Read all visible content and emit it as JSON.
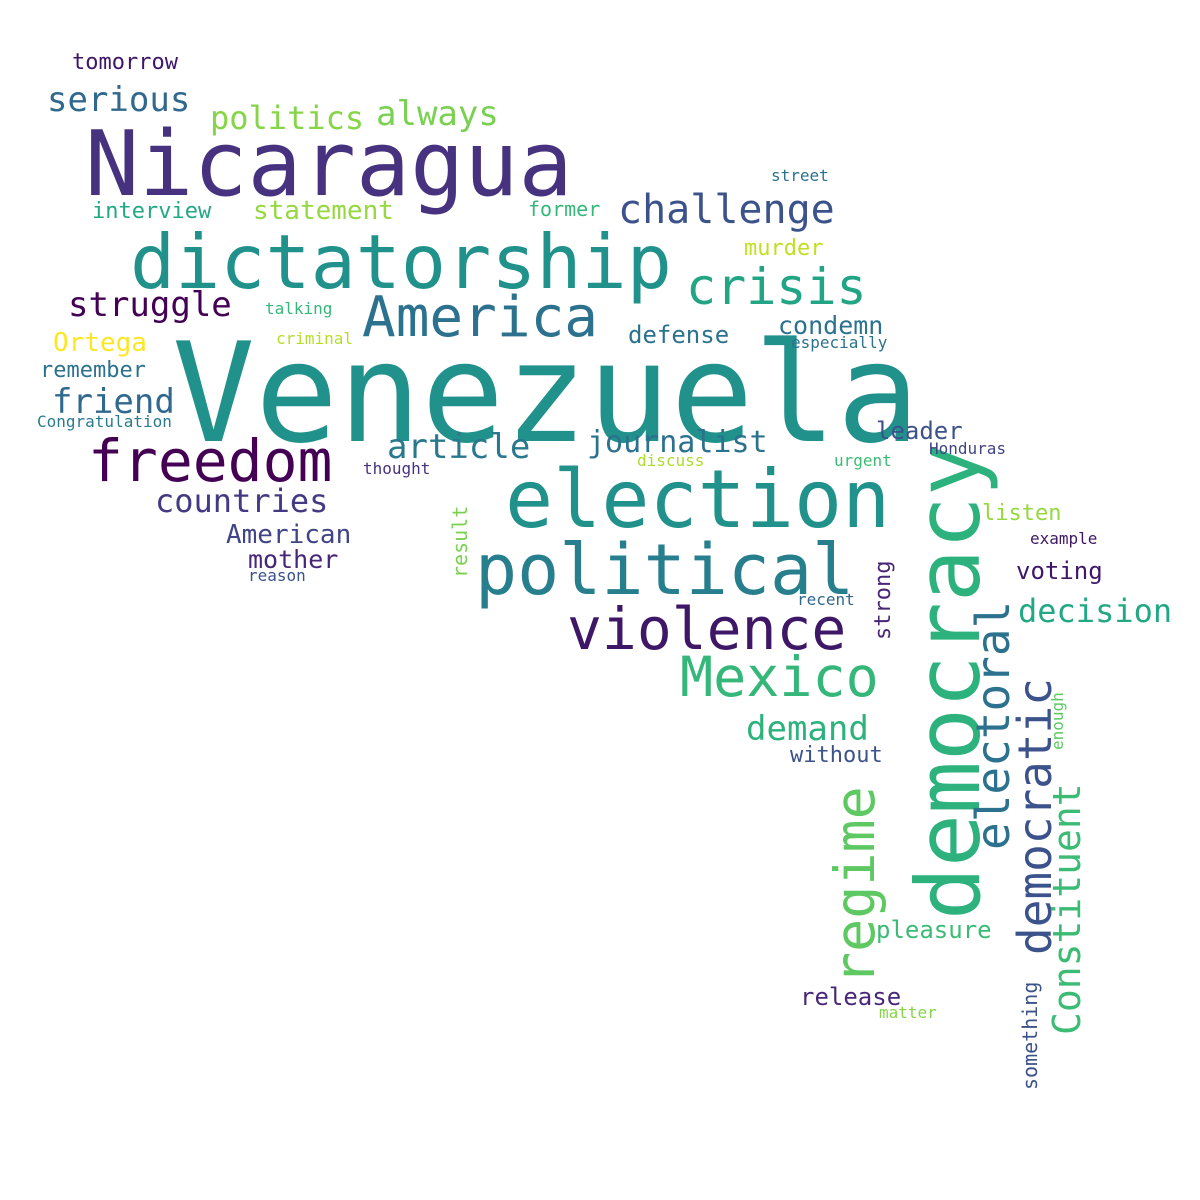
{
  "words": [
    {
      "text": "Venezuela",
      "color": "#21918c",
      "vertical": false
    },
    {
      "text": "Nicaragua",
      "color": "#46327e",
      "vertical": false
    },
    {
      "text": "dictatorship",
      "color": "#21918c",
      "vertical": false
    },
    {
      "text": "democracy",
      "color": "#2db27d",
      "vertical": true
    },
    {
      "text": "election",
      "color": "#21918c",
      "vertical": false
    },
    {
      "text": "political",
      "color": "#277f8e",
      "vertical": false
    },
    {
      "text": "freedom",
      "color": "#440154",
      "vertical": false
    },
    {
      "text": "violence",
      "color": "#3e1767",
      "vertical": false
    },
    {
      "text": "America",
      "color": "#2c728e",
      "vertical": false
    },
    {
      "text": "Mexico",
      "color": "#35b779",
      "vertical": false
    },
    {
      "text": "electoral",
      "color": "#2c728e",
      "vertical": true
    },
    {
      "text": "regime",
      "color": "#5ec962",
      "vertical": true
    },
    {
      "text": "democratic",
      "color": "#3b528b",
      "vertical": true
    },
    {
      "text": "crisis",
      "color": "#21a585",
      "vertical": false
    },
    {
      "text": "challenge",
      "color": "#3b528b",
      "vertical": false
    },
    {
      "text": "Constituent",
      "color": "#3cbb75",
      "vertical": true
    },
    {
      "text": "struggle",
      "color": "#440154",
      "vertical": false
    },
    {
      "text": "article",
      "color": "#2a788e",
      "vertical": false
    },
    {
      "text": "countries",
      "color": "#443a83",
      "vertical": false
    },
    {
      "text": "friend",
      "color": "#31688e",
      "vertical": false
    },
    {
      "text": "demand",
      "color": "#2db27d",
      "vertical": false
    },
    {
      "text": "decision",
      "color": "#22a884",
      "vertical": false
    },
    {
      "text": "serious",
      "color": "#31688e",
      "vertical": false
    },
    {
      "text": "always",
      "color": "#7ad151",
      "vertical": false
    },
    {
      "text": "journalist",
      "color": "#2c728e",
      "vertical": false
    },
    {
      "text": "politics",
      "color": "#86d549",
      "vertical": false
    },
    {
      "text": "American",
      "color": "#414487",
      "vertical": false
    },
    {
      "text": "statement",
      "color": "#95d840",
      "vertical": false
    },
    {
      "text": "condemn",
      "color": "#2c728e",
      "vertical": false
    },
    {
      "text": "mother",
      "color": "#482677",
      "vertical": false
    },
    {
      "text": "Ortega",
      "color": "#fde725",
      "vertical": false
    },
    {
      "text": "defense",
      "color": "#2c728e",
      "vertical": false
    },
    {
      "text": "leader",
      "color": "#3b528b",
      "vertical": false
    },
    {
      "text": "pleasure",
      "color": "#3cbb75",
      "vertical": false
    },
    {
      "text": "release",
      "color": "#482878",
      "vertical": false
    },
    {
      "text": "interview",
      "color": "#22a884",
      "vertical": false
    },
    {
      "text": "voting",
      "color": "#3e1767",
      "vertical": false
    },
    {
      "text": "listen",
      "color": "#95d840",
      "vertical": false
    },
    {
      "text": "remember",
      "color": "#2c728e",
      "vertical": false
    },
    {
      "text": "tomorrow",
      "color": "#3e1767",
      "vertical": false
    },
    {
      "text": "murder",
      "color": "#c2df23",
      "vertical": false
    },
    {
      "text": "former",
      "color": "#35b779",
      "vertical": false
    },
    {
      "text": "without",
      "color": "#3b528b",
      "vertical": false
    },
    {
      "text": "strong",
      "color": "#482677",
      "vertical": true
    },
    {
      "text": "something",
      "color": "#3b528b",
      "vertical": true
    },
    {
      "text": "result",
      "color": "#7ad151",
      "vertical": true
    },
    {
      "text": "Congratulation",
      "color": "#287c8e",
      "vertical": false
    },
    {
      "text": "talking",
      "color": "#35b779",
      "vertical": false
    },
    {
      "text": "criminal",
      "color": "#b5de2b",
      "vertical": false
    },
    {
      "text": "especially",
      "color": "#2c728e",
      "vertical": false
    },
    {
      "text": "street",
      "color": "#2c728e",
      "vertical": false
    },
    {
      "text": "thought",
      "color": "#46327e",
      "vertical": false
    },
    {
      "text": "discuss",
      "color": "#addc30",
      "vertical": false
    },
    {
      "text": "urgent",
      "color": "#3cbb75",
      "vertical": false
    },
    {
      "text": "Honduras",
      "color": "#414487",
      "vertical": false
    },
    {
      "text": "example",
      "color": "#3e1767",
      "vertical": false
    },
    {
      "text": "recent",
      "color": "#31688e",
      "vertical": false
    },
    {
      "text": "matter",
      "color": "#86d549",
      "vertical": false
    },
    {
      "text": "enough",
      "color": "#5ec962",
      "vertical": true
    },
    {
      "text": "reason",
      "color": "#3b528b",
      "vertical": false
    }
  ]
}
